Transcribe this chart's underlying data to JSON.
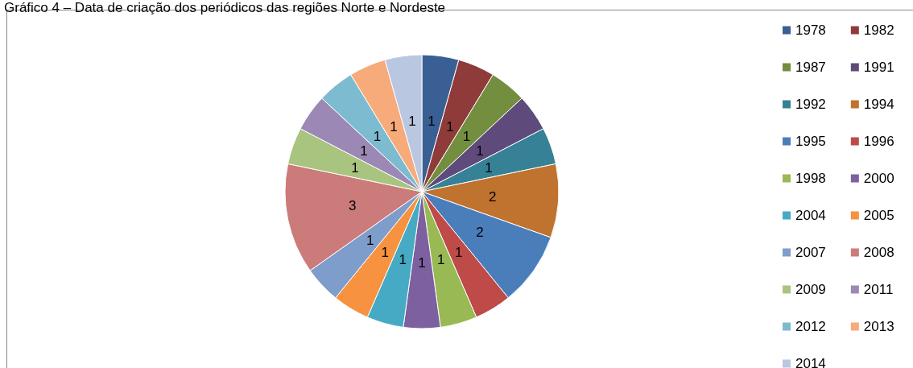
{
  "chart_data": {
    "type": "pie",
    "title": "Gráfico 4 – Data de criação dos periódicos das regiões Norte e Nordeste",
    "categories": [
      "1978",
      "1982",
      "1987",
      "1991",
      "1992",
      "1994",
      "1995",
      "1996",
      "1998",
      "2000",
      "2004",
      "2005",
      "2007",
      "2008",
      "2009",
      "2011",
      "2012",
      "2013",
      "2014"
    ],
    "values": [
      1,
      1,
      1,
      1,
      1,
      2,
      2,
      1,
      1,
      1,
      1,
      1,
      1,
      3,
      1,
      1,
      1,
      1,
      1
    ],
    "colors": [
      "#3a5f94",
      "#8e3b39",
      "#748e40",
      "#5f4a7c",
      "#378196",
      "#c0722f",
      "#4a7ebb",
      "#be4b48",
      "#98b954",
      "#7d60a0",
      "#46aac5",
      "#f69240",
      "#7f9dcb",
      "#cb7b7a",
      "#a9c47f",
      "#9c88b5",
      "#7dbbd1",
      "#f7ab7a",
      "#b9c7e0"
    ],
    "data_labels": true,
    "legend": "right"
  }
}
